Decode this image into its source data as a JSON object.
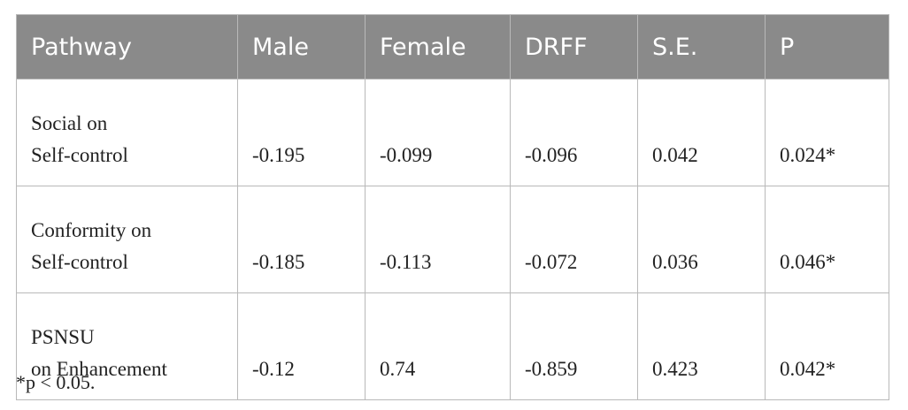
{
  "table": {
    "headers": [
      "Pathway",
      "Male",
      "Female",
      "DRFF",
      "S.E.",
      "P"
    ],
    "rows": [
      {
        "pathway": [
          "Social on",
          "Self-control"
        ],
        "male": "-0.195",
        "female": "-0.099",
        "drff": "-0.096",
        "se": "0.042",
        "p": "0.024*"
      },
      {
        "pathway": [
          "Conformity on",
          "Self-control"
        ],
        "male": "-0.185",
        "female": "-0.113",
        "drff": "-0.072",
        "se": "0.036",
        "p": "0.046*"
      },
      {
        "pathway": [
          "PSNSU",
          "on Enhancement"
        ],
        "male": "-0.12",
        "female": "0.74",
        "drff": "-0.859",
        "se": "0.423",
        "p": "0.042*"
      }
    ]
  },
  "footnote": "*p < 0.05."
}
